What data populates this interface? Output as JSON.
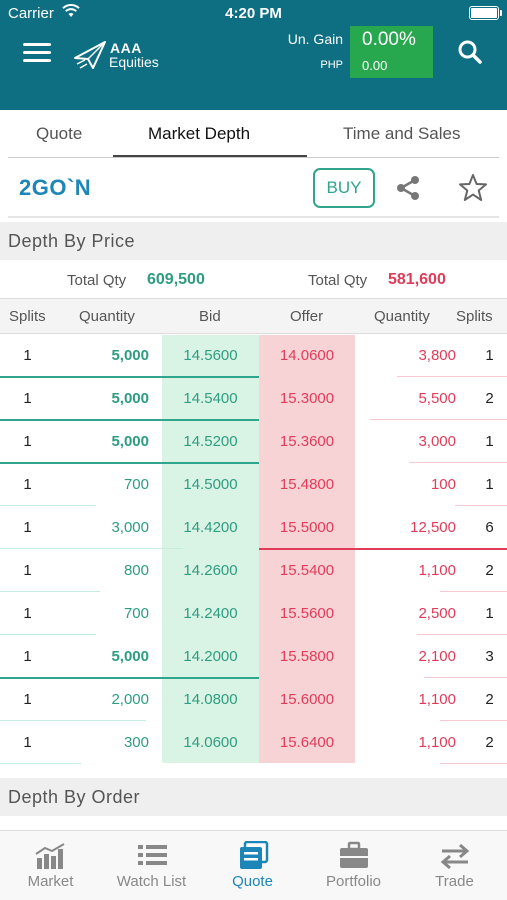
{
  "status_bar": {
    "carrier": "Carrier",
    "time": "4:20 PM"
  },
  "header": {
    "brand_line1": "AAA",
    "brand_line2": "Equities",
    "gain_label": "Un. Gain",
    "currency_label": "PHP",
    "gain_pct": "0.00%",
    "gain_amount": "0.00"
  },
  "tabs": [
    {
      "label": "Quote"
    },
    {
      "label": "Market Depth"
    },
    {
      "label": "Time and Sales"
    }
  ],
  "active_tab": "Market Depth",
  "instrument": {
    "symbol": "2GO`N",
    "buy_label": "BUY"
  },
  "depth_by_price": {
    "title": "Depth By Price",
    "total_qty_label": "Total Qty",
    "bid_total": "609,500",
    "offer_total": "581,600",
    "columns": [
      "Splits",
      "Quantity",
      "Bid",
      "Offer",
      "Quantity",
      "Splits"
    ],
    "rows": [
      {
        "bid_splits": "1",
        "bid_qty": "5,000",
        "bid": "14.5600",
        "offer": "14.0600",
        "offer_qty": "3,800",
        "offer_splits": "1"
      },
      {
        "bid_splits": "1",
        "bid_qty": "5,000",
        "bid": "14.5400",
        "offer": "15.3000",
        "offer_qty": "5,500",
        "offer_splits": "2"
      },
      {
        "bid_splits": "1",
        "bid_qty": "5,000",
        "bid": "14.5200",
        "offer": "15.3600",
        "offer_qty": "3,000",
        "offer_splits": "1"
      },
      {
        "bid_splits": "1",
        "bid_qty": "700",
        "bid": "14.5000",
        "offer": "15.4800",
        "offer_qty": "100",
        "offer_splits": "1"
      },
      {
        "bid_splits": "1",
        "bid_qty": "3,000",
        "bid": "14.4200",
        "offer": "15.5000",
        "offer_qty": "12,500",
        "offer_splits": "6"
      },
      {
        "bid_splits": "1",
        "bid_qty": "800",
        "bid": "14.2600",
        "offer": "15.5400",
        "offer_qty": "1,100",
        "offer_splits": "2"
      },
      {
        "bid_splits": "1",
        "bid_qty": "700",
        "bid": "14.2400",
        "offer": "15.5600",
        "offer_qty": "2,500",
        "offer_splits": "1"
      },
      {
        "bid_splits": "1",
        "bid_qty": "5,000",
        "bid": "14.2000",
        "offer": "15.5800",
        "offer_qty": "2,100",
        "offer_splits": "3"
      },
      {
        "bid_splits": "1",
        "bid_qty": "2,000",
        "bid": "14.0800",
        "offer": "15.6000",
        "offer_qty": "1,100",
        "offer_splits": "2"
      },
      {
        "bid_splits": "1",
        "bid_qty": "300",
        "bid": "14.0600",
        "offer": "15.6400",
        "offer_qty": "1,100",
        "offer_splits": "2"
      }
    ]
  },
  "depth_by_order": {
    "title": "Depth By Order"
  },
  "bottom_nav": [
    {
      "label": "Market",
      "icon": "bar-chart-icon"
    },
    {
      "label": "Watch List",
      "icon": "list-icon"
    },
    {
      "label": "Quote",
      "icon": "quote-icon"
    },
    {
      "label": "Portfolio",
      "icon": "briefcase-icon"
    },
    {
      "label": "Trade",
      "icon": "transfer-arrows-icon"
    }
  ],
  "active_nav": "Quote",
  "colors": {
    "header_bg": "#0e6f82",
    "gain_box": "#28a84e",
    "bid_text": "#2e9c81",
    "offer_text": "#e03c5a",
    "bid_bg": "#d9f3e4",
    "offer_bg": "#f8d3d5",
    "accent": "#1d86b8"
  }
}
